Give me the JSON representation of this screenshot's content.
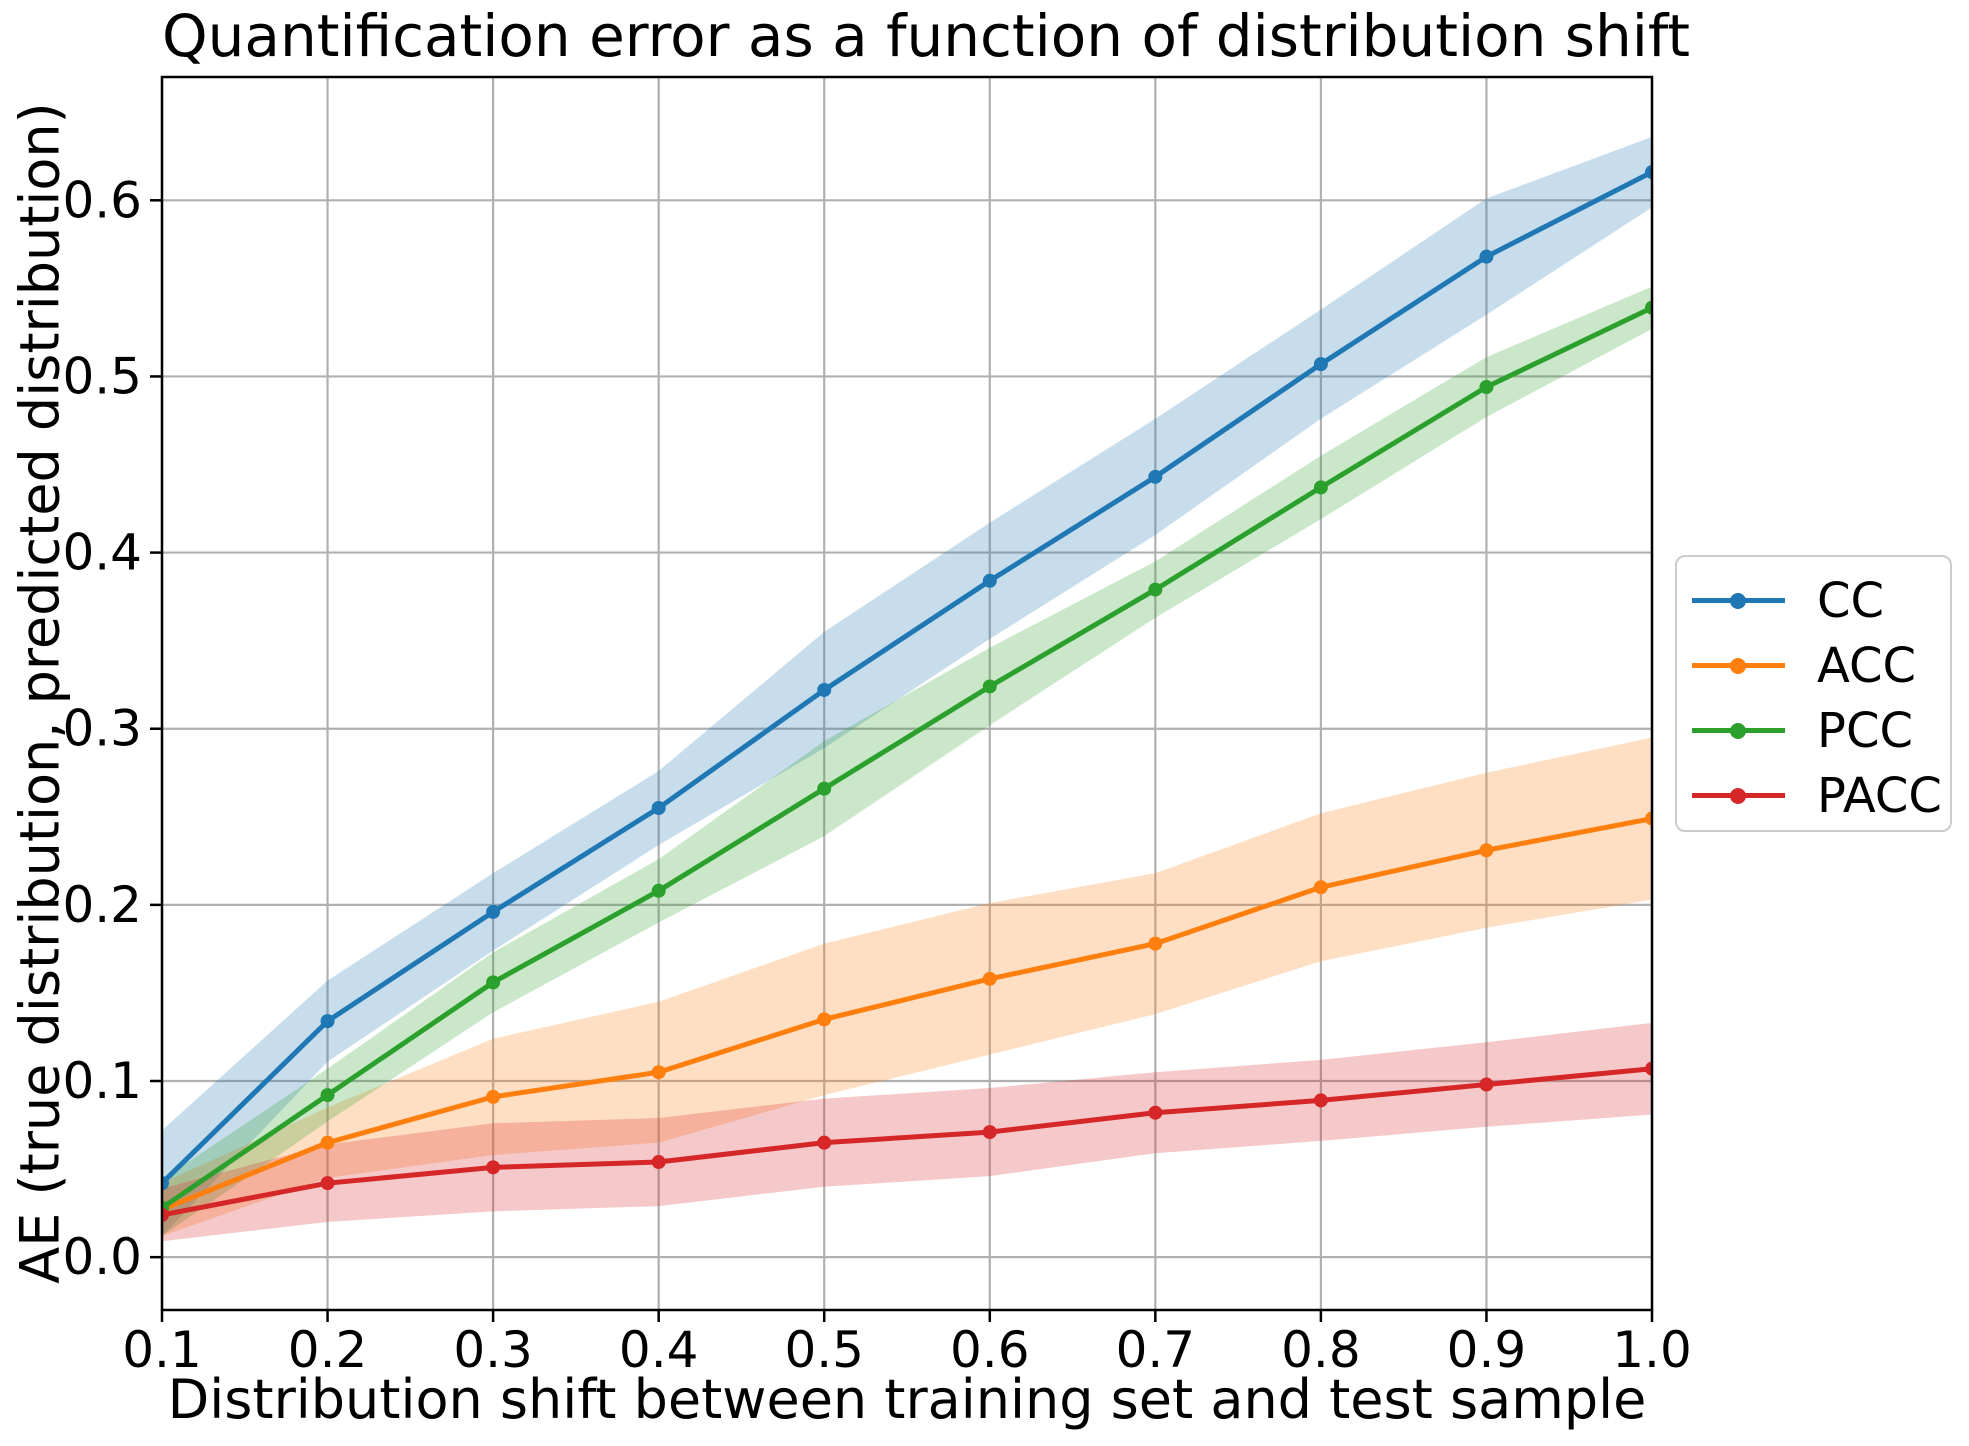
{
  "chart_data": {
    "type": "line",
    "title": "Quantification error as a function of distribution shift",
    "xlabel": "Distribution shift between training set and test sample",
    "ylabel": "AE (true distribution, predicted distribution)",
    "x": [
      0.1,
      0.2,
      0.3,
      0.4,
      0.5,
      0.6,
      0.7,
      0.8,
      0.9,
      1.0
    ],
    "xlim": [
      0.1,
      1.0
    ],
    "ylim": [
      -0.03,
      0.67
    ],
    "xticks": {
      "values": [
        0.1,
        0.2,
        0.3,
        0.4,
        0.5,
        0.6,
        0.7,
        0.8,
        0.9,
        1.0
      ],
      "labels": [
        "0.1",
        "0.2",
        "0.3",
        "0.4",
        "0.5",
        "0.6",
        "0.7",
        "0.8",
        "0.9",
        "1.0"
      ]
    },
    "yticks": {
      "values": [
        0.0,
        0.1,
        0.2,
        0.3,
        0.4,
        0.5,
        0.6
      ],
      "labels": [
        "0.0",
        "0.1",
        "0.2",
        "0.3",
        "0.4",
        "0.5",
        "0.6"
      ]
    },
    "grid": true,
    "legend_position": "outside-right",
    "legend_entries": [
      "CC",
      "ACC",
      "PCC",
      "PACC"
    ],
    "band_opacity": 0.25,
    "series": [
      {
        "name": "CC",
        "color": "#1f77b4",
        "values": [
          0.042,
          0.134,
          0.196,
          0.255,
          0.322,
          0.384,
          0.443,
          0.507,
          0.568,
          0.616
        ],
        "band_half_width": [
          0.03,
          0.023,
          0.022,
          0.021,
          0.033,
          0.033,
          0.033,
          0.031,
          0.033,
          0.02
        ]
      },
      {
        "name": "ACC",
        "color": "#ff7f0e",
        "values": [
          0.027,
          0.065,
          0.091,
          0.105,
          0.135,
          0.158,
          0.178,
          0.21,
          0.231,
          0.249
        ],
        "band_half_width": [
          0.015,
          0.02,
          0.033,
          0.04,
          0.043,
          0.043,
          0.04,
          0.042,
          0.044,
          0.046
        ]
      },
      {
        "name": "PCC",
        "color": "#2ca02c",
        "values": [
          0.028,
          0.092,
          0.156,
          0.208,
          0.266,
          0.324,
          0.379,
          0.437,
          0.494,
          0.539
        ],
        "band_half_width": [
          0.016,
          0.015,
          0.017,
          0.018,
          0.027,
          0.022,
          0.016,
          0.018,
          0.017,
          0.012
        ]
      },
      {
        "name": "PACC",
        "color": "#d62728",
        "values": [
          0.024,
          0.042,
          0.051,
          0.054,
          0.065,
          0.071,
          0.082,
          0.089,
          0.098,
          0.107
        ],
        "band_half_width": [
          0.015,
          0.022,
          0.025,
          0.025,
          0.025,
          0.025,
          0.023,
          0.023,
          0.024,
          0.026
        ]
      }
    ],
    "colors": {
      "grid": "#b0b0b0",
      "spine": "#000000",
      "tick": "#000000",
      "text": "#000000",
      "legend_border": "#cccccc",
      "background": "#ffffff"
    }
  }
}
